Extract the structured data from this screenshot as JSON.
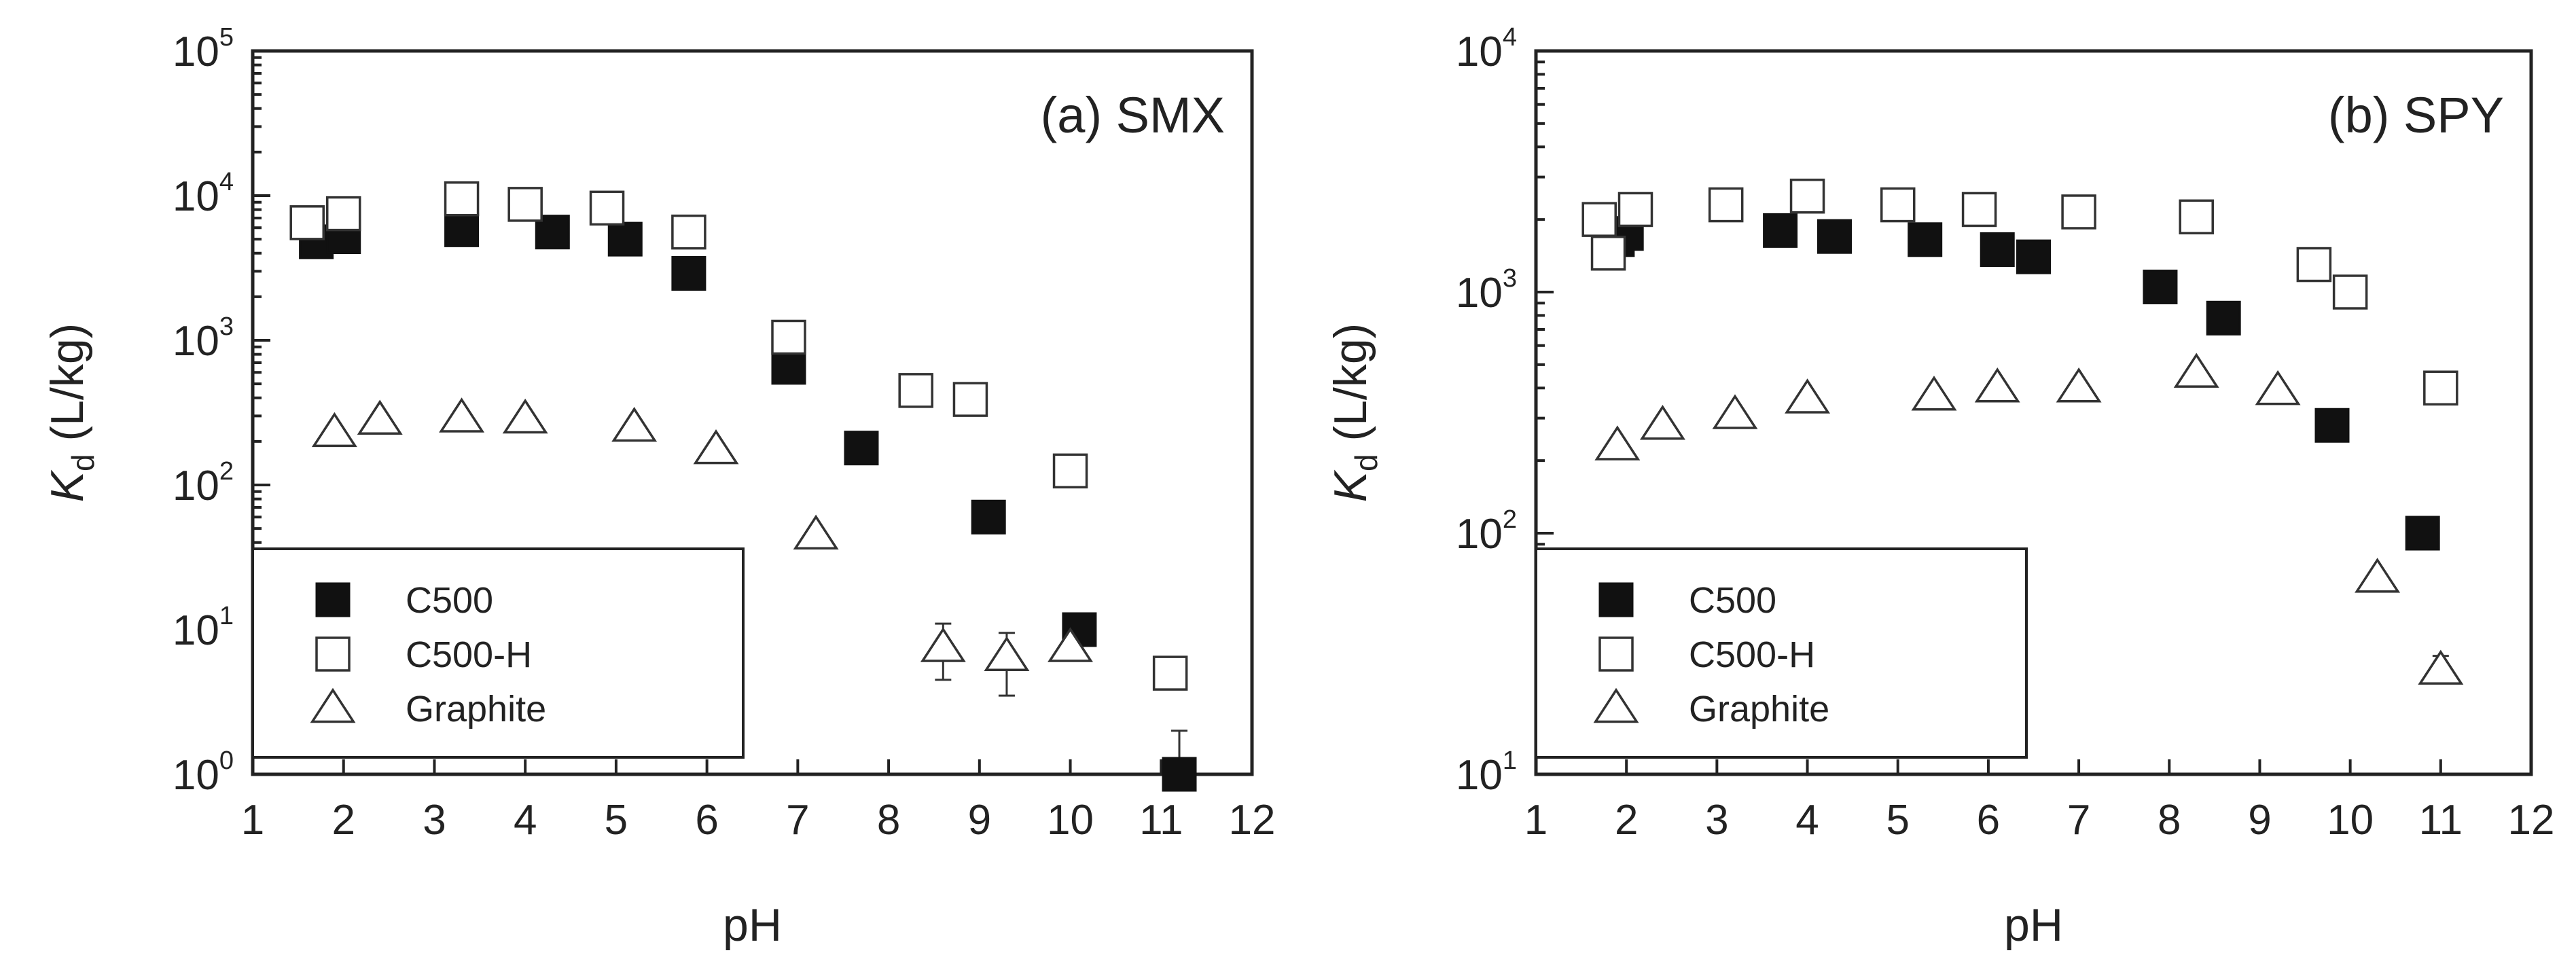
{
  "chart_data": [
    {
      "type": "scatter",
      "panel_label": "(a) SMX",
      "xlabel": "pH",
      "ylabel_main": "K",
      "ylabel_sub": "d",
      "ylabel_unit": " (L/kg)",
      "xlim": [
        1,
        12
      ],
      "x_ticks": [
        "1",
        "2",
        "3",
        "4",
        "5",
        "6",
        "7",
        "8",
        "9",
        "10",
        "11",
        "12"
      ],
      "ylim": [
        1,
        100000
      ],
      "y_scale": "log",
      "y_ticks": [
        {
          "base": "10",
          "exp": "0"
        },
        {
          "base": "10",
          "exp": "1"
        },
        {
          "base": "10",
          "exp": "2"
        },
        {
          "base": "10",
          "exp": "3"
        },
        {
          "base": "10",
          "exp": "4"
        },
        {
          "base": "10",
          "exp": "5"
        }
      ],
      "legend_position": "bottom-left",
      "series": [
        {
          "name": "C500",
          "marker": "filled-square",
          "points": [
            {
              "x": 1.7,
              "y": 4800
            },
            {
              "x": 2.0,
              "y": 5200
            },
            {
              "x": 3.3,
              "y": 5800
            },
            {
              "x": 4.3,
              "y": 5600
            },
            {
              "x": 5.1,
              "y": 5000
            },
            {
              "x": 5.8,
              "y": 2900
            },
            {
              "x": 6.9,
              "y": 650
            },
            {
              "x": 7.7,
              "y": 180
            },
            {
              "x": 9.1,
              "y": 60
            },
            {
              "x": 10.1,
              "y": 10
            },
            {
              "x": 11.2,
              "y": 1.0,
              "err_hi": 2.0
            }
          ]
        },
        {
          "name": "C500-H",
          "marker": "open-square",
          "points": [
            {
              "x": 1.6,
              "y": 6500
            },
            {
              "x": 2.0,
              "y": 7500
            },
            {
              "x": 3.3,
              "y": 9500
            },
            {
              "x": 4.0,
              "y": 8700
            },
            {
              "x": 4.9,
              "y": 8200
            },
            {
              "x": 5.8,
              "y": 5600
            },
            {
              "x": 6.9,
              "y": 1050
            },
            {
              "x": 8.3,
              "y": 450
            },
            {
              "x": 8.9,
              "y": 390
            },
            {
              "x": 10.0,
              "y": 125
            },
            {
              "x": 11.1,
              "y": 5
            }
          ]
        },
        {
          "name": "Graphite",
          "marker": "open-triangle",
          "points": [
            {
              "x": 1.9,
              "y": 230
            },
            {
              "x": 2.4,
              "y": 280
            },
            {
              "x": 3.3,
              "y": 290
            },
            {
              "x": 4.0,
              "y": 285
            },
            {
              "x": 5.2,
              "y": 250
            },
            {
              "x": 6.1,
              "y": 175
            },
            {
              "x": 7.2,
              "y": 45
            },
            {
              "x": 8.6,
              "y": 7.5,
              "err_lo": 4.5,
              "err_hi": 11
            },
            {
              "x": 9.3,
              "y": 6.5,
              "err_lo": 3.5,
              "err_hi": 9.5
            },
            {
              "x": 10.0,
              "y": 7.5
            }
          ]
        }
      ]
    },
    {
      "type": "scatter",
      "panel_label": "(b) SPY",
      "xlabel": "pH",
      "ylabel_main": "K",
      "ylabel_sub": "d",
      "ylabel_unit": " (L/kg)",
      "xlim": [
        1,
        12
      ],
      "x_ticks": [
        "1",
        "2",
        "3",
        "4",
        "5",
        "6",
        "7",
        "8",
        "9",
        "10",
        "11",
        "12"
      ],
      "ylim": [
        10,
        10000
      ],
      "y_scale": "log",
      "y_ticks": [
        {
          "base": "10",
          "exp": "1"
        },
        {
          "base": "10",
          "exp": "2"
        },
        {
          "base": "10",
          "exp": "3"
        },
        {
          "base": "10",
          "exp": "4"
        }
      ],
      "legend_position": "bottom-left",
      "series": [
        {
          "name": "C500",
          "marker": "filled-square",
          "points": [
            {
              "x": 1.9,
              "y": 1650
            },
            {
              "x": 2.0,
              "y": 1750
            },
            {
              "x": 3.7,
              "y": 1800
            },
            {
              "x": 4.3,
              "y": 1700
            },
            {
              "x": 5.3,
              "y": 1650
            },
            {
              "x": 6.1,
              "y": 1500
            },
            {
              "x": 6.5,
              "y": 1400
            },
            {
              "x": 7.9,
              "y": 1050
            },
            {
              "x": 8.6,
              "y": 780
            },
            {
              "x": 9.8,
              "y": 280
            },
            {
              "x": 10.8,
              "y": 100
            }
          ]
        },
        {
          "name": "C500-H",
          "marker": "open-square",
          "points": [
            {
              "x": 1.7,
              "y": 2000
            },
            {
              "x": 1.8,
              "y": 1450
            },
            {
              "x": 2.1,
              "y": 2200
            },
            {
              "x": 3.1,
              "y": 2300
            },
            {
              "x": 4.0,
              "y": 2500
            },
            {
              "x": 5.0,
              "y": 2300
            },
            {
              "x": 5.9,
              "y": 2200
            },
            {
              "x": 7.0,
              "y": 2150
            },
            {
              "x": 8.3,
              "y": 2050
            },
            {
              "x": 9.6,
              "y": 1300
            },
            {
              "x": 10.0,
              "y": 1000
            },
            {
              "x": 11.0,
              "y": 400
            }
          ]
        },
        {
          "name": "Graphite",
          "marker": "open-triangle",
          "points": [
            {
              "x": 1.9,
              "y": 230
            },
            {
              "x": 2.4,
              "y": 280
            },
            {
              "x": 3.2,
              "y": 310
            },
            {
              "x": 4.0,
              "y": 360
            },
            {
              "x": 5.4,
              "y": 370
            },
            {
              "x": 6.1,
              "y": 400
            },
            {
              "x": 7.0,
              "y": 400
            },
            {
              "x": 8.3,
              "y": 460
            },
            {
              "x": 9.2,
              "y": 390
            },
            {
              "x": 10.3,
              "y": 65
            },
            {
              "x": 11.0,
              "y": 27,
              "err_lo": 24,
              "err_hi": 31
            }
          ]
        }
      ]
    }
  ]
}
